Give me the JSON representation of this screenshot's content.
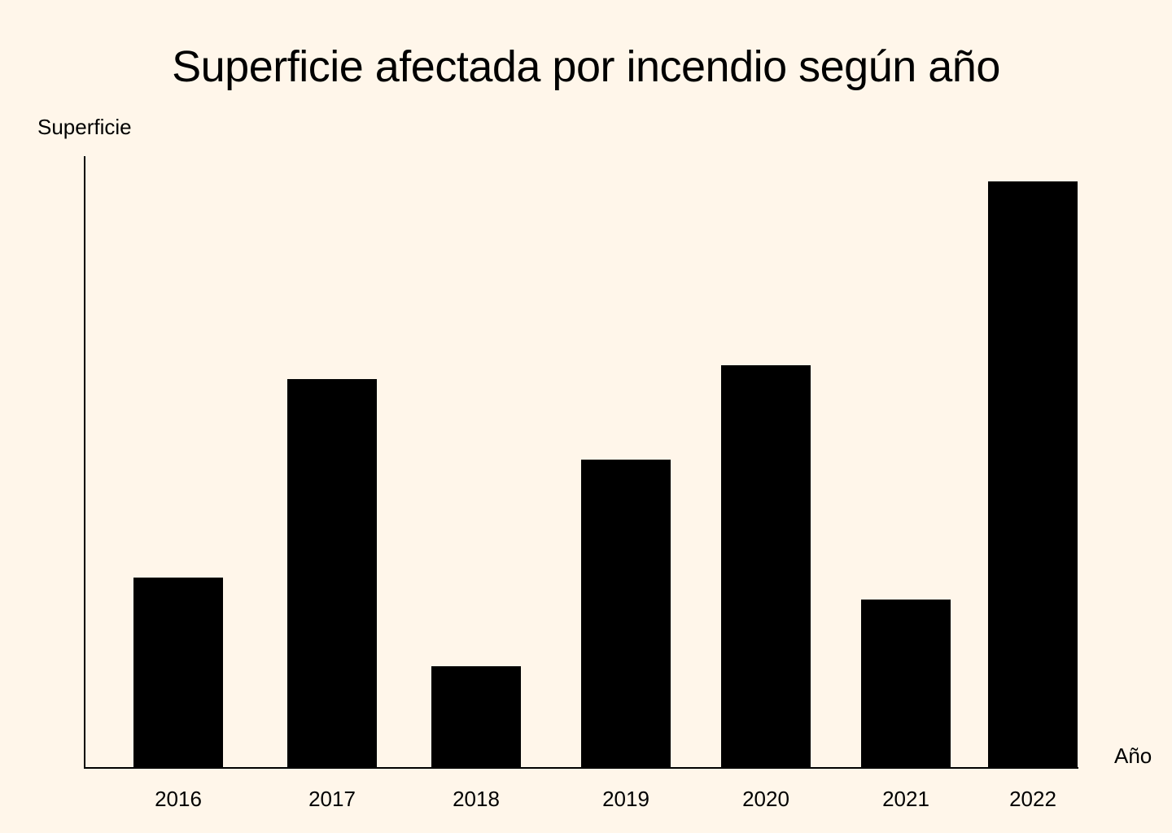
{
  "chart_data": {
    "type": "bar",
    "title": "Superficie afectada por incendio según año",
    "xlabel": "Año",
    "ylabel": "Superficie",
    "categories": [
      "2016",
      "2017",
      "2018",
      "2019",
      "2020",
      "2021",
      "2022"
    ],
    "values": [
      234,
      478,
      125,
      379,
      495,
      207,
      721
    ],
    "ylim": [
      0,
      752
    ],
    "grid": false,
    "y_tick_labels_shown": false,
    "colors": {
      "bars": "#000000",
      "background": "#fff6ea",
      "axis": "#000000"
    }
  }
}
